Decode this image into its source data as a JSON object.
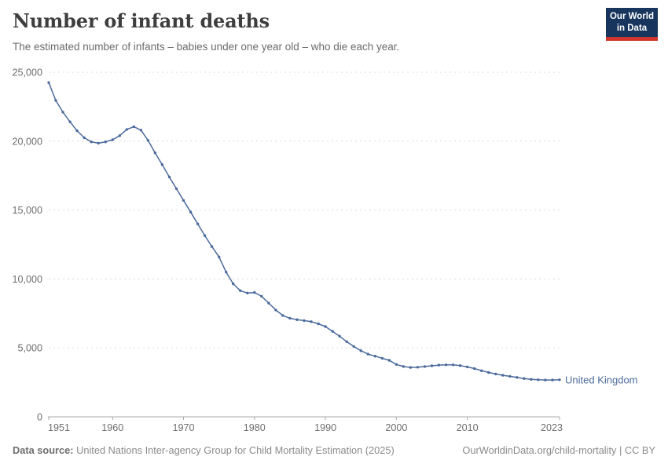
{
  "header": {
    "title": "Number of infant deaths",
    "subtitle": "The estimated number of infants – babies under one year old – who die each year.",
    "logo": {
      "line1": "Our World",
      "line2": "in Data",
      "bg_color": "#18365d",
      "accent_color": "#d0342c"
    }
  },
  "chart_data": {
    "type": "line",
    "title": "Number of infant deaths",
    "xlabel": "",
    "ylabel": "",
    "xlim": [
      1951,
      2023
    ],
    "ylim": [
      0,
      25000
    ],
    "grid": "horizontal dashed",
    "legend_position": "end-of-line label",
    "x_ticks": [
      1951,
      1960,
      1970,
      1980,
      1990,
      2000,
      2010,
      2023
    ],
    "y_ticks": [
      0,
      5000,
      10000,
      15000,
      20000,
      25000
    ],
    "y_tick_labels": [
      "0",
      "5,000",
      "10,000",
      "15,000",
      "20,000",
      "25,000"
    ],
    "series": [
      {
        "name": "United Kingdom",
        "color": "#4c6a9c",
        "start_year": 1951,
        "values": [
          24250,
          22950,
          22100,
          21400,
          20750,
          20250,
          19950,
          19850,
          19950,
          20100,
          20400,
          20850,
          21050,
          20800,
          20050,
          19150,
          18300,
          17400,
          16550,
          15700,
          14850,
          14000,
          13150,
          12350,
          11600,
          10500,
          9650,
          9150,
          8980,
          9020,
          8750,
          8250,
          7750,
          7350,
          7150,
          7050,
          6980,
          6900,
          6750,
          6550,
          6200,
          5850,
          5450,
          5100,
          4800,
          4550,
          4400,
          4250,
          4100,
          3800,
          3650,
          3580,
          3600,
          3650,
          3700,
          3750,
          3770,
          3770,
          3720,
          3620,
          3500,
          3350,
          3220,
          3110,
          3010,
          2940,
          2860,
          2780,
          2720,
          2690,
          2670,
          2670,
          2690
        ]
      }
    ]
  },
  "footer": {
    "datasource_label": "Data source:",
    "datasource_text": " United Nations Inter-agency Group for Child Mortality Estimation (2025)",
    "link_text": "OurWorldinData.org/child-mortality | CC BY"
  }
}
